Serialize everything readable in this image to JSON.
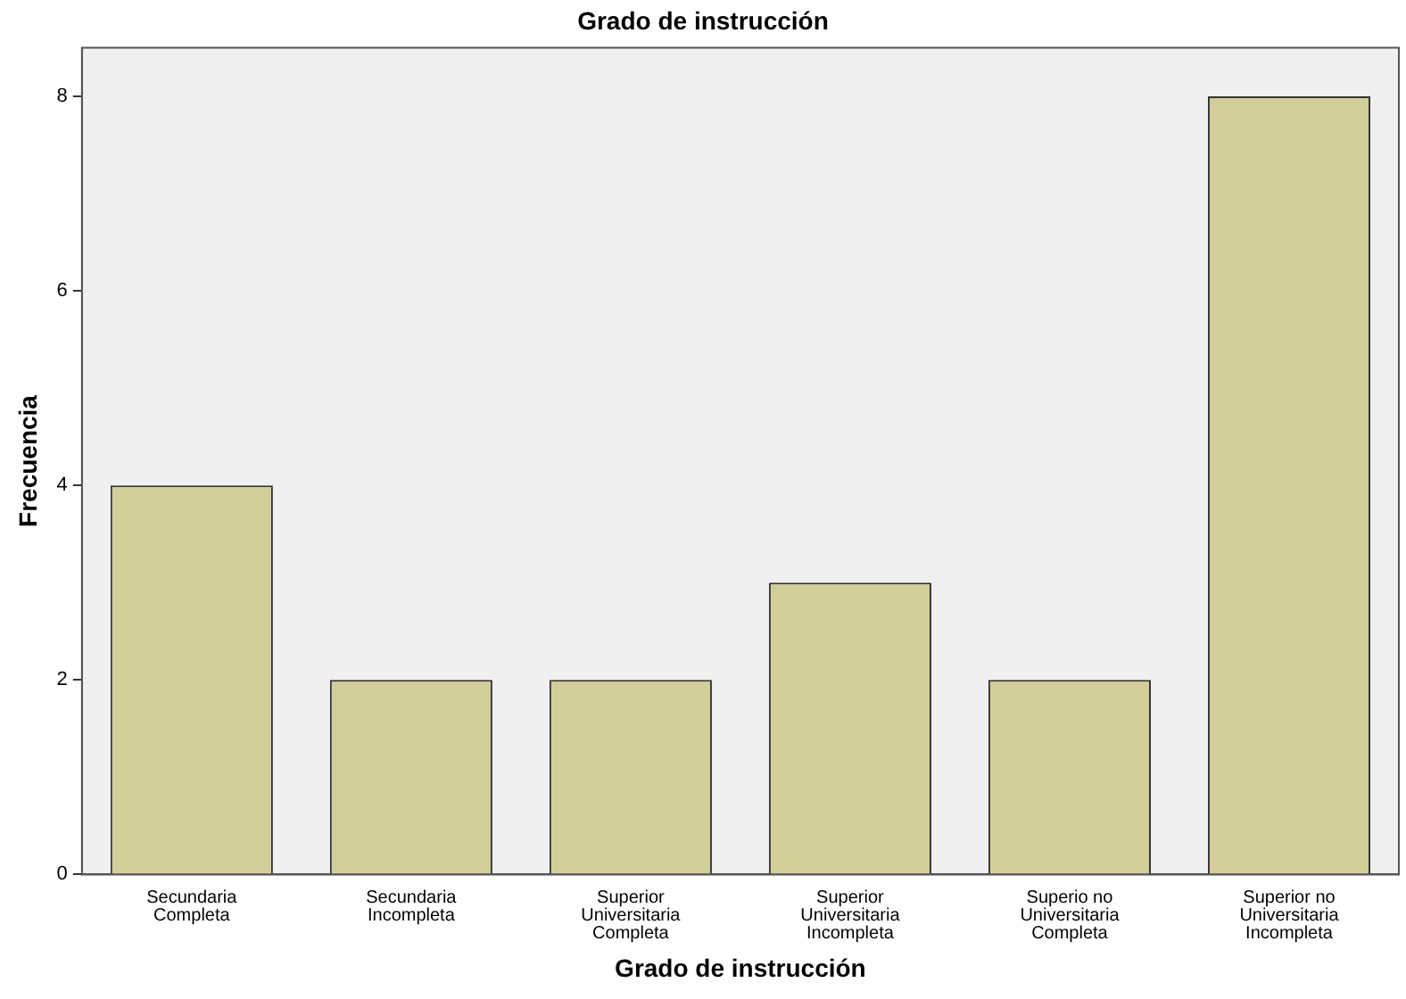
{
  "chart_data": {
    "type": "bar",
    "title": "Grado de instrucción",
    "xlabel": "Grado de instrucción",
    "ylabel": "Frecuencia",
    "categories": [
      "Secundaria Completa",
      "Secundaria Incompleta",
      "Superior Universitaria Completa",
      "Superior Universitaria Incompleta",
      "Superio no Universitaria Completa",
      "Superior no Universitaria Incompleta"
    ],
    "values": [
      4,
      2,
      2,
      3,
      2,
      8
    ],
    "color": "#d3cd99",
    "ylim": [
      0,
      8.5
    ],
    "yticks": [
      0,
      2,
      4,
      6,
      8
    ],
    "grid": false,
    "legend": false
  }
}
